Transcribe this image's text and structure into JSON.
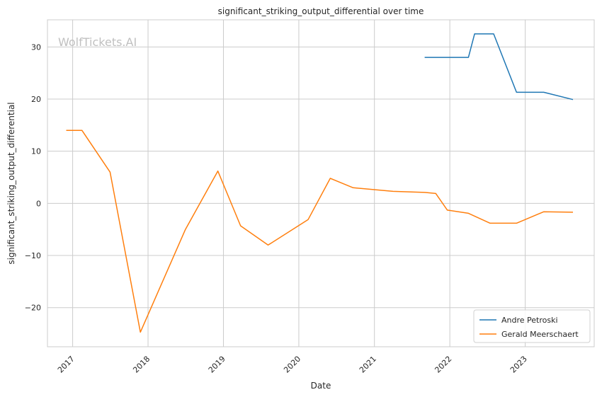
{
  "chart_data": {
    "type": "line",
    "title": "significant_striking_output_differential over time",
    "xlabel": "Date",
    "ylabel": "significant_striking_output_differential",
    "watermark": "WolfTickets.AI",
    "xlim": [
      "2016-09-01",
      "2023-12-01"
    ],
    "ylim": [
      -27.5,
      35.2
    ],
    "x_ticks": [
      "2017",
      "2018",
      "2019",
      "2020",
      "2021",
      "2022",
      "2023"
    ],
    "y_ticks": [
      -20,
      -10,
      0,
      10,
      20,
      30
    ],
    "grid": true,
    "legend_position": "lower-right",
    "series": [
      {
        "name": "Andre Petroski",
        "color": "#1f77b4",
        "points": [
          [
            "2021-09-01",
            28.0
          ],
          [
            "2021-12-15",
            28.0
          ],
          [
            "2022-04-01",
            28.0
          ],
          [
            "2022-05-01",
            32.5
          ],
          [
            "2022-08-01",
            32.5
          ],
          [
            "2022-11-20",
            21.3
          ],
          [
            "2023-04-01",
            21.3
          ],
          [
            "2023-08-20",
            19.9
          ]
        ]
      },
      {
        "name": "Gerald Meerschaert",
        "color": "#ff7f0e",
        "points": [
          [
            "2016-12-01",
            14.0
          ],
          [
            "2017-02-15",
            14.0
          ],
          [
            "2017-07-01",
            6.0
          ],
          [
            "2017-11-25",
            -24.7
          ],
          [
            "2018-07-01",
            -5.0
          ],
          [
            "2018-12-05",
            6.2
          ],
          [
            "2019-03-25",
            -4.3
          ],
          [
            "2019-08-05",
            -8.0
          ],
          [
            "2020-02-15",
            -3.1
          ],
          [
            "2020-06-01",
            4.8
          ],
          [
            "2020-09-20",
            3.0
          ],
          [
            "2021-04-01",
            2.3
          ],
          [
            "2021-09-01",
            2.1
          ],
          [
            "2021-10-25",
            1.9
          ],
          [
            "2021-12-20",
            -1.3
          ],
          [
            "2022-04-01",
            -1.9
          ],
          [
            "2022-07-15",
            -3.8
          ],
          [
            "2022-11-20",
            -3.8
          ],
          [
            "2023-04-01",
            -1.6
          ],
          [
            "2023-08-20",
            -1.7
          ]
        ]
      }
    ]
  }
}
